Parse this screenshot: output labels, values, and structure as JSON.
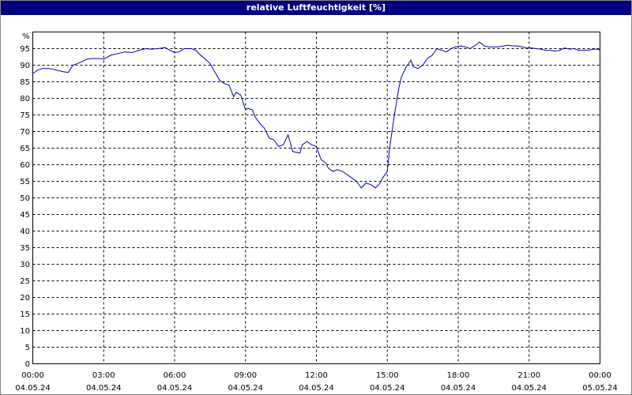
{
  "chart_data": {
    "type": "line",
    "title": "relative Luftfeuchtigkeit [%]",
    "ylabel": "%",
    "xlabel": "",
    "ylim": [
      0,
      100
    ],
    "yticks": [
      0,
      5,
      10,
      15,
      20,
      25,
      30,
      35,
      40,
      45,
      50,
      55,
      60,
      65,
      70,
      75,
      80,
      85,
      90,
      95
    ],
    "xlim_hours": [
      0,
      24
    ],
    "xticks": [
      {
        "time": "00:00",
        "date": "04.05.24"
      },
      {
        "time": "03:00",
        "date": "04.05.24"
      },
      {
        "time": "06:00",
        "date": "04.05.24"
      },
      {
        "time": "09:00",
        "date": "04.05.24"
      },
      {
        "time": "12:00",
        "date": "04.05.24"
      },
      {
        "time": "15:00",
        "date": "04.05.24"
      },
      {
        "time": "18:00",
        "date": "04.05.24"
      },
      {
        "time": "21:00",
        "date": "04.05.24"
      },
      {
        "time": "00:00",
        "date": "05.05.24"
      }
    ],
    "grid": true,
    "series_color": "#0000c0",
    "series": [
      {
        "x": [
          0.0,
          0.2,
          0.4,
          0.7,
          1.0,
          1.3,
          1.5,
          1.7,
          2.0,
          2.3,
          2.5,
          2.8,
          3.0,
          3.3,
          3.6,
          3.9,
          4.2,
          4.5,
          4.8,
          5.0,
          5.3,
          5.6,
          5.8,
          6.0,
          6.2,
          6.4,
          6.7,
          6.9,
          7.1,
          7.3,
          7.5,
          7.7,
          7.9,
          8.1,
          8.3,
          8.5,
          8.6,
          8.8,
          9.0,
          9.1,
          9.3,
          9.4,
          9.6,
          9.8,
          10.0,
          10.2,
          10.4,
          10.6,
          10.8,
          11.0,
          11.1,
          11.3,
          11.4,
          11.6,
          11.8,
          12.0,
          12.2,
          12.4,
          12.5,
          12.7,
          12.9,
          13.1,
          13.3,
          13.5,
          13.7,
          13.9,
          14.1,
          14.3,
          14.5,
          14.7,
          14.8,
          15.0,
          15.1,
          15.3,
          15.5,
          15.6,
          15.8,
          16.0,
          16.1,
          16.3,
          16.5,
          16.7,
          16.9,
          17.1,
          17.3,
          17.5,
          17.7,
          17.9,
          18.1,
          18.3,
          18.5,
          18.7,
          18.9,
          19.1,
          19.3,
          19.5,
          19.7,
          19.9,
          20.1,
          20.3,
          20.5,
          20.7,
          20.9,
          21.1,
          21.3,
          21.5,
          21.7,
          21.9,
          22.1,
          22.3,
          22.5,
          22.7,
          22.9,
          23.1,
          23.3,
          23.5,
          23.7,
          23.9,
          24.0
        ],
        "y": [
          87.5,
          88.5,
          89.0,
          89.0,
          88.5,
          88.0,
          87.8,
          90.0,
          90.8,
          91.8,
          92.0,
          92.0,
          91.8,
          93.0,
          93.5,
          94.0,
          93.8,
          94.5,
          95.0,
          94.8,
          95.0,
          95.3,
          94.5,
          93.8,
          94.0,
          95.0,
          95.0,
          94.5,
          93.0,
          91.8,
          90.5,
          88.0,
          85.5,
          84.5,
          84.0,
          80.5,
          81.8,
          81.0,
          76.5,
          77.0,
          76.5,
          74.5,
          72.5,
          71.0,
          68.0,
          67.5,
          65.5,
          66.0,
          69.0,
          64.0,
          63.8,
          63.5,
          66.0,
          67.0,
          66.0,
          65.5,
          61.5,
          60.5,
          59.0,
          58.0,
          58.5,
          58.0,
          57.0,
          56.0,
          55.0,
          53.0,
          54.5,
          54.0,
          53.0,
          54.5,
          56.0,
          58.0,
          65.0,
          75.0,
          83.5,
          86.5,
          89.5,
          91.5,
          89.5,
          89.0,
          90.0,
          92.0,
          93.0,
          95.0,
          94.5,
          94.0,
          95.0,
          95.5,
          95.8,
          95.5,
          95.0,
          95.8,
          97.0,
          95.8,
          95.5,
          95.5,
          95.5,
          95.8,
          96.0,
          95.8,
          95.8,
          95.5,
          95.2,
          95.2,
          95.0,
          94.8,
          94.5,
          94.5,
          94.2,
          94.5,
          95.2,
          94.8,
          95.0,
          94.5,
          94.5,
          94.5,
          94.8,
          94.8,
          94.5
        ]
      }
    ]
  }
}
